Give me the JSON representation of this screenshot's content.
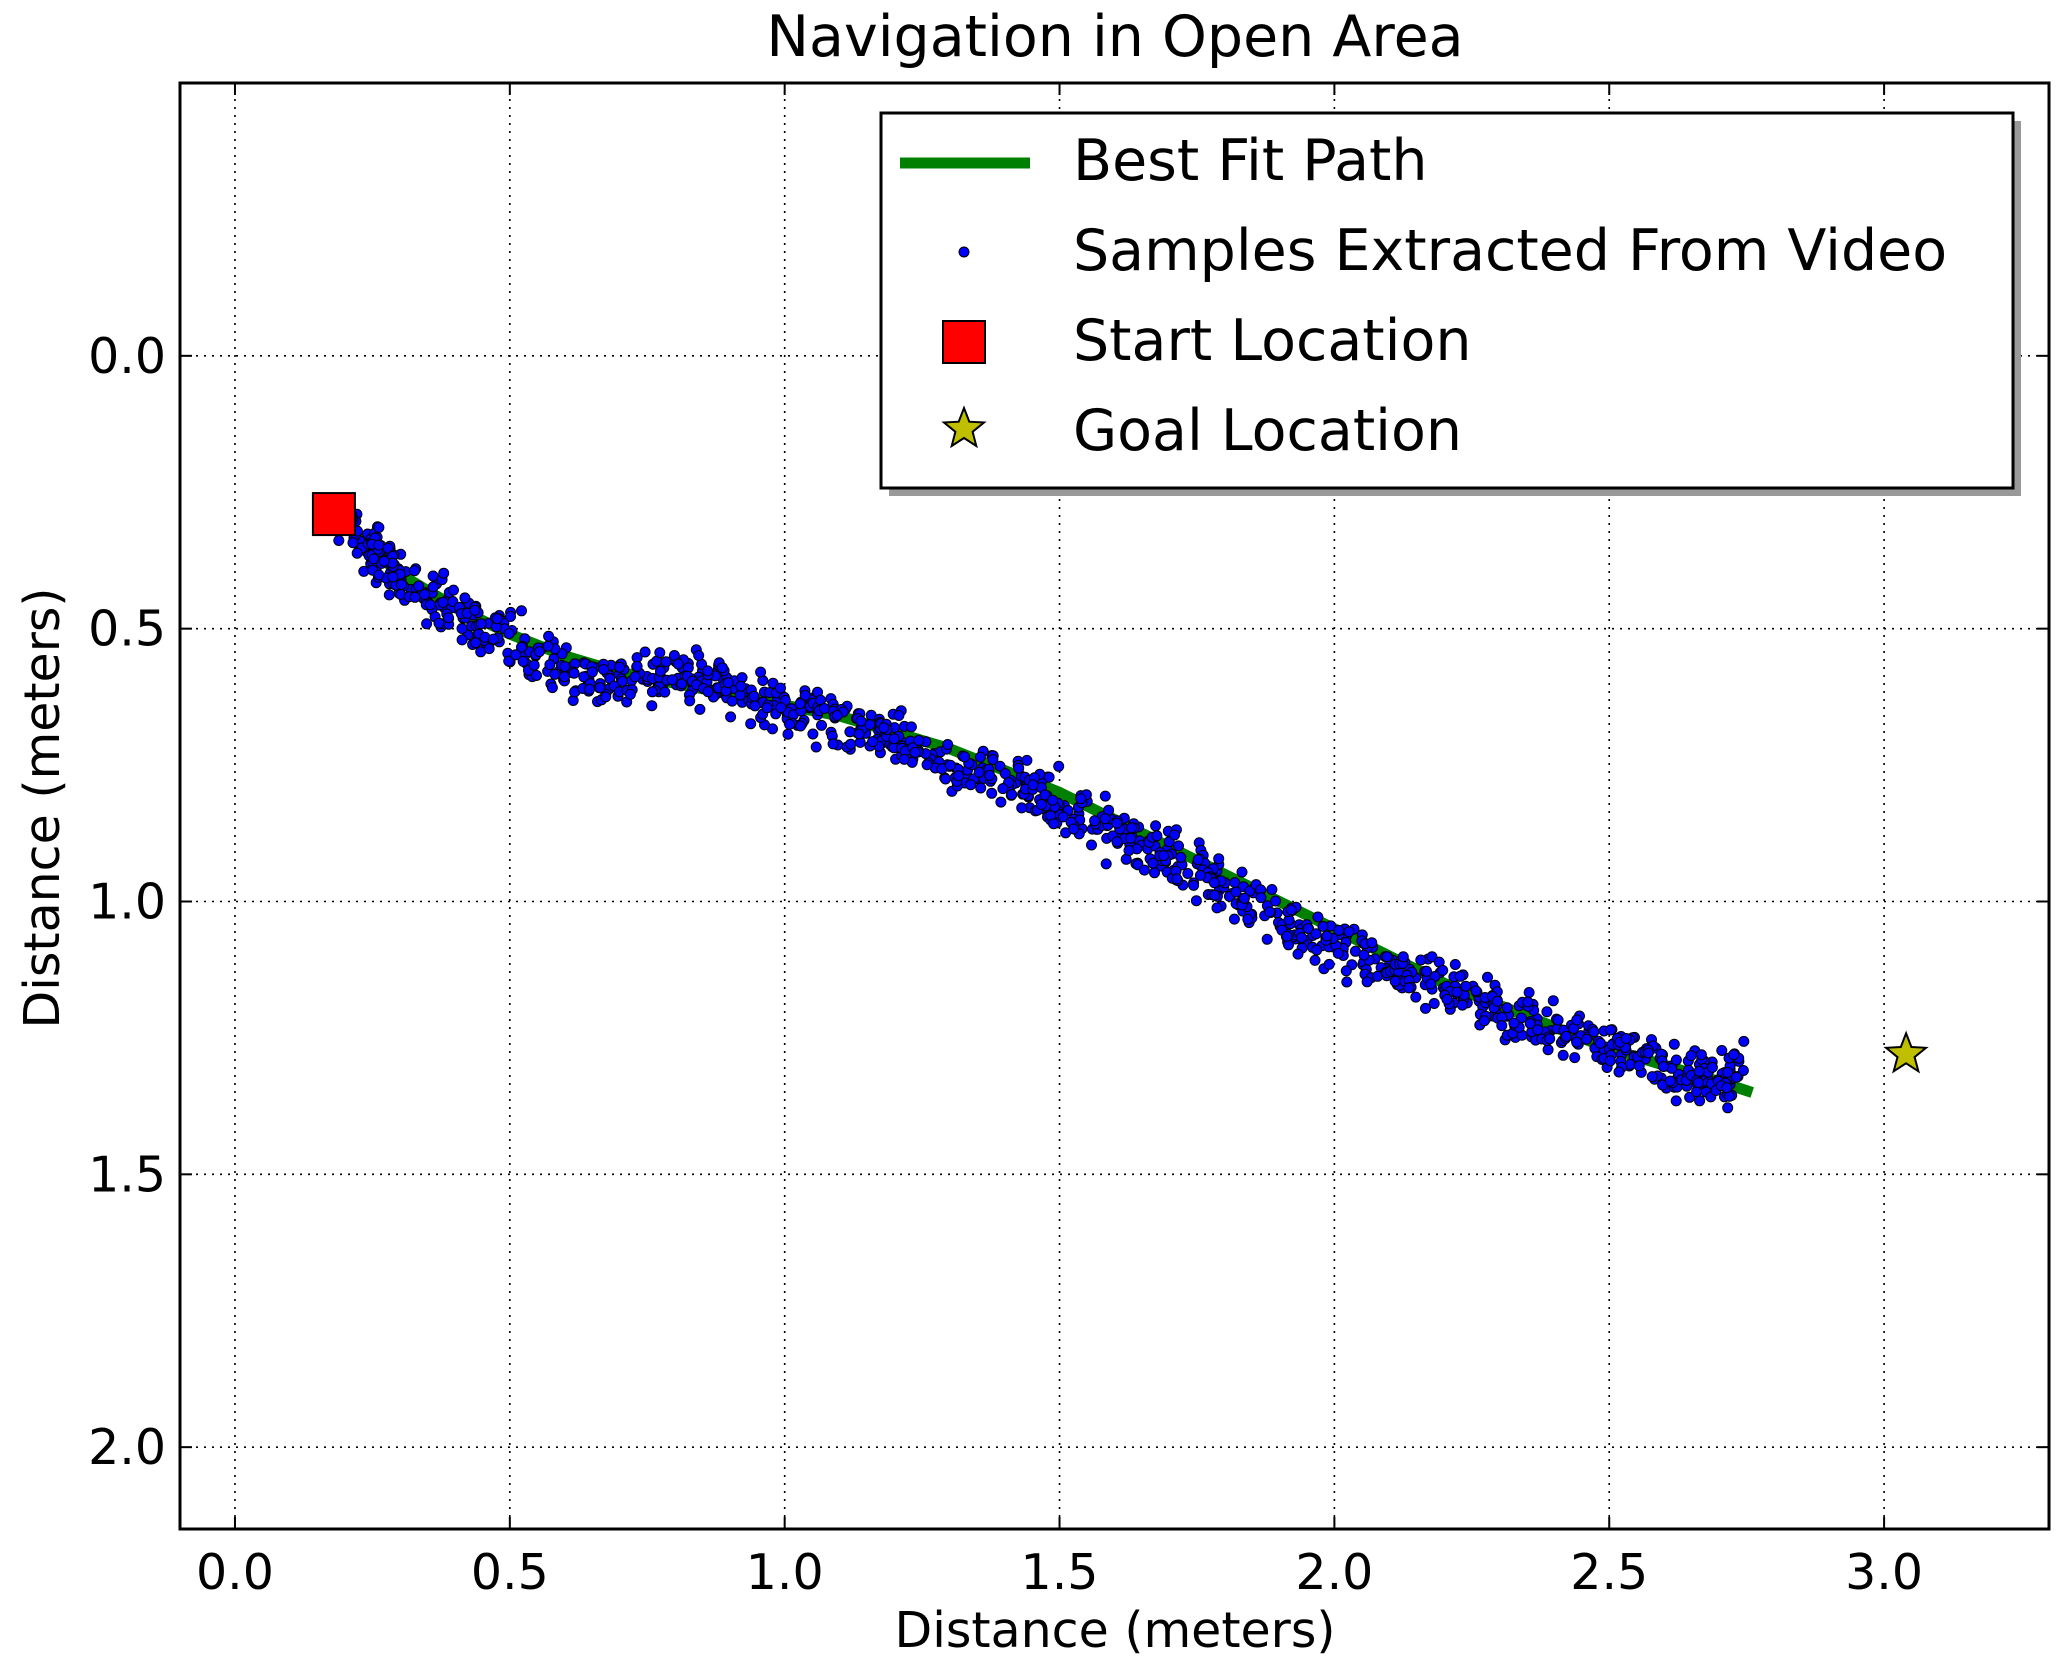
{
  "chart_data": {
    "type": "scatter",
    "title": "Navigation in Open Area",
    "xlabel": "Distance (meters)",
    "ylabel": "Distance (meters)",
    "xlim": [
      -0.1,
      3.3
    ],
    "ylim": [
      2.15,
      -0.5
    ],
    "y_inverted": true,
    "grid": true,
    "legend_position": "top-right",
    "x_ticks": [
      0.0,
      0.5,
      1.0,
      1.5,
      2.0,
      2.5,
      3.0
    ],
    "x_tick_labels": [
      "0.0",
      "0.5",
      "1.0",
      "1.5",
      "2.0",
      "2.5",
      "3.0"
    ],
    "y_ticks": [
      0.0,
      0.5,
      1.0,
      1.5,
      2.0
    ],
    "y_tick_labels": [
      "0.0",
      "0.5",
      "1.0",
      "1.5",
      "2.0"
    ],
    "legend": [
      {
        "label": "Best Fit Path",
        "kind": "line",
        "color": "#008000"
      },
      {
        "label": "Samples Extracted From Video",
        "kind": "dot",
        "color": "#0000ff"
      },
      {
        "label": "Start Location",
        "kind": "square",
        "color": "#ff0000"
      },
      {
        "label": "Goal Location",
        "kind": "star",
        "color": "#bfbf00"
      }
    ],
    "best_fit_path": {
      "color": "#008000",
      "x": [
        0.2,
        0.3,
        0.4,
        0.5,
        0.6,
        0.7,
        0.8,
        0.9,
        1.0,
        1.1,
        1.2,
        1.3,
        1.4,
        1.5,
        1.6,
        1.7,
        1.8,
        1.9,
        2.0,
        2.1,
        2.2,
        2.3,
        2.4,
        2.5,
        2.6,
        2.7,
        2.76
      ],
      "y": [
        0.31,
        0.4,
        0.46,
        0.51,
        0.55,
        0.58,
        0.6,
        0.62,
        0.64,
        0.66,
        0.69,
        0.72,
        0.76,
        0.8,
        0.85,
        0.9,
        0.95,
        1.0,
        1.05,
        1.1,
        1.15,
        1.19,
        1.23,
        1.27,
        1.3,
        1.33,
        1.35
      ]
    },
    "samples_trajectory": {
      "color": "#0000ff",
      "x": [
        0.2,
        0.25,
        0.28,
        0.33,
        0.4,
        0.47,
        0.55,
        0.63,
        0.7,
        0.78,
        0.85,
        0.92,
        1.0,
        1.08,
        1.15,
        1.22,
        1.3,
        1.38,
        1.45,
        1.52,
        1.6,
        1.68,
        1.75,
        1.82,
        1.9,
        1.97,
        2.05,
        2.12,
        2.2,
        2.28,
        2.35,
        2.42,
        2.5,
        2.58,
        2.65,
        2.7,
        2.74
      ],
      "y": [
        0.31,
        0.36,
        0.38,
        0.43,
        0.47,
        0.5,
        0.55,
        0.58,
        0.6,
        0.58,
        0.59,
        0.62,
        0.64,
        0.66,
        0.69,
        0.71,
        0.75,
        0.77,
        0.8,
        0.83,
        0.87,
        0.91,
        0.95,
        0.99,
        1.03,
        1.07,
        1.1,
        1.13,
        1.16,
        1.19,
        1.22,
        1.24,
        1.27,
        1.29,
        1.32,
        1.33,
        1.3
      ],
      "spread_y": 0.035
    },
    "start_location": {
      "x": 0.18,
      "y": 0.29,
      "color": "#ff0000"
    },
    "goal_location": {
      "x": 3.04,
      "y": 1.28,
      "color": "#bfbf00"
    }
  }
}
